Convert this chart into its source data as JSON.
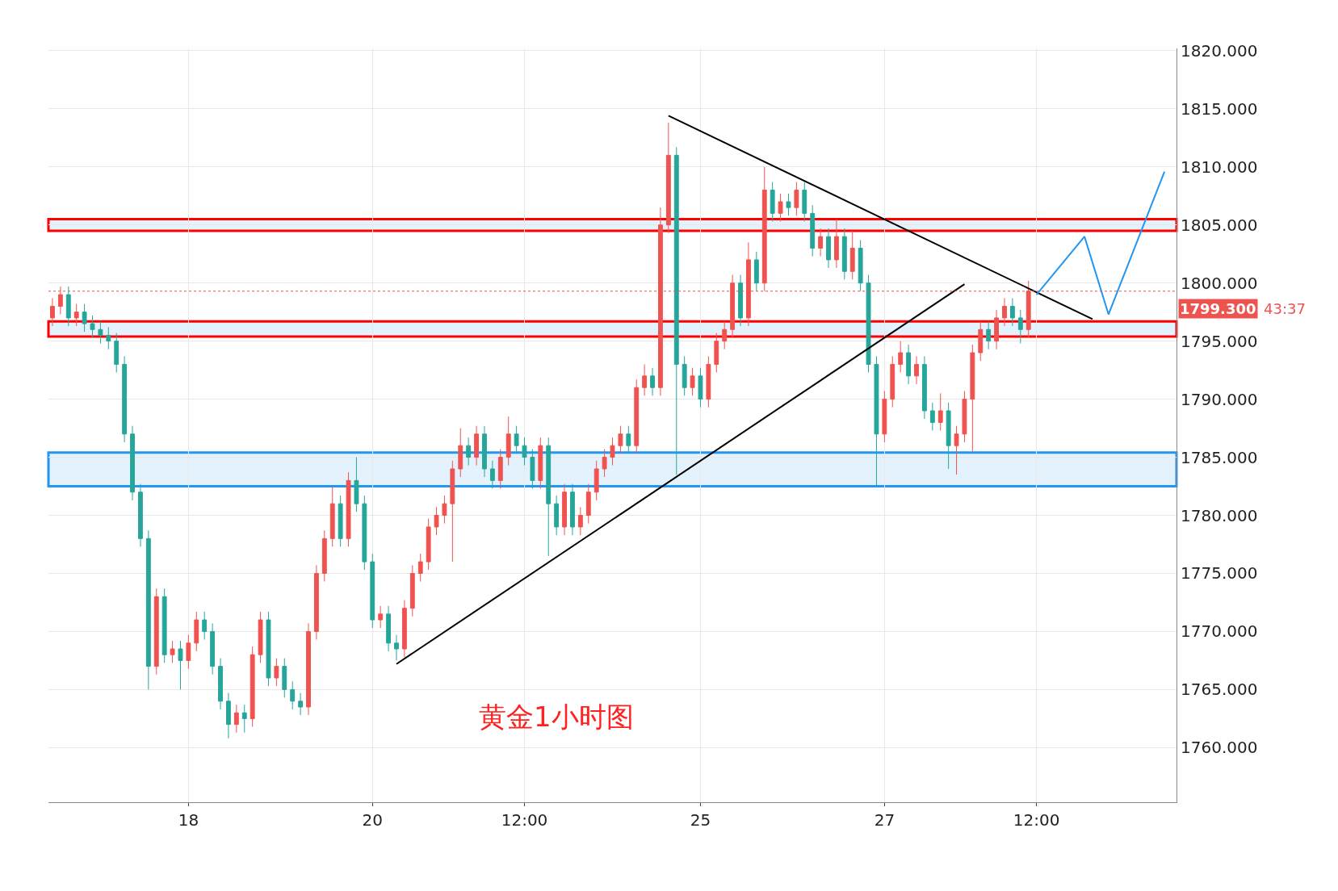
{
  "chart_data": {
    "type": "candlestick",
    "categories": [
      null,
      null,
      null,
      null,
      null,
      null,
      null,
      null,
      null,
      null,
      null,
      null,
      null,
      null,
      null,
      null,
      null,
      "18",
      null,
      null,
      null,
      null,
      null,
      null,
      null,
      null,
      null,
      null,
      null,
      null,
      null,
      null,
      null,
      null,
      null,
      null,
      null,
      null,
      null,
      null,
      "20",
      null,
      null,
      null,
      null,
      null,
      null,
      null,
      null,
      null,
      null,
      null,
      null,
      null,
      null,
      null,
      null,
      null,
      null,
      "12:00",
      null,
      null,
      null,
      null,
      null,
      null,
      null,
      null,
      null,
      null,
      null,
      null,
      null,
      null,
      null,
      null,
      null,
      null,
      null,
      null,
      null,
      "25",
      null,
      null,
      null,
      null,
      null,
      null,
      null,
      null,
      null,
      null,
      null,
      null,
      null,
      null,
      null,
      null,
      null,
      null,
      null,
      null,
      null,
      null,
      "27",
      null,
      null,
      null,
      null,
      null,
      null,
      null,
      null,
      null,
      null,
      null,
      null,
      null,
      null,
      null,
      null,
      null,
      null,
      "12:00",
      null,
      null,
      null,
      null,
      null,
      null,
      null,
      null,
      null,
      null,
      null,
      null,
      null,
      null,
      null,
      null,
      null
    ],
    "series": [
      {
        "colors": [
          "#ef5350",
          "#ef5350",
          "#26a69a",
          "#ef5350",
          "#26a69a",
          "#26a69a",
          "#26a69a",
          "#26a69a",
          "#26a69a",
          "#26a69a",
          "#26a69a",
          "#26a69a",
          "#26a69a",
          "#ef5350",
          "#26a69a",
          "#ef5350",
          "#26a69a",
          "#ef5350",
          "#ef5350",
          "#26a69a",
          "#26a69a",
          "#26a69a",
          "#26a69a",
          "#ef5350",
          "#26a69a",
          "#ef5350",
          "#ef5350",
          "#26a69a",
          "#ef5350",
          "#26a69a",
          "#26a69a",
          "#26a69a",
          "#ef5350",
          "#ef5350",
          "#ef5350",
          "#ef5350",
          "#26a69a",
          "#ef5350",
          "#26a69a",
          "#26a69a",
          "#26a69a",
          "#ef5350",
          "#26a69a",
          "#26a69a",
          "#ef5350",
          "#ef5350",
          "#ef5350",
          "#ef5350",
          "#ef5350",
          "#ef5350",
          "#ef5350",
          "#ef5350",
          "#26a69a",
          "#ef5350",
          "#26a69a",
          "#26a69a",
          "#ef5350",
          "#ef5350",
          "#26a69a",
          "#26a69a",
          "#26a69a",
          "#ef5350",
          "#26a69a",
          "#26a69a",
          "#ef5350",
          "#26a69a",
          "#ef5350",
          "#ef5350",
          "#ef5350",
          "#ef5350",
          "#ef5350",
          "#ef5350",
          "#26a69a",
          "#ef5350",
          "#ef5350",
          "#26a69a",
          "#ef5350",
          "#ef5350",
          "#26a69a",
          "#26a69a",
          "#ef5350",
          "#26a69a",
          "#ef5350",
          "#ef5350",
          "#ef5350",
          "#ef5350",
          "#26a69a",
          "#ef5350",
          "#26a69a",
          "#ef5350",
          "#26a69a",
          "#ef5350",
          "#26a69a",
          "#ef5350",
          "#26a69a",
          "#26a69a",
          "#ef5350",
          "#26a69a",
          "#ef5350",
          "#26a69a",
          "#ef5350",
          "#26a69a",
          "#26a69a",
          "#26a69a",
          "#ef5350",
          "#ef5350",
          "#ef5350",
          "#26a69a",
          "#ef5350",
          "#26a69a",
          "#26a69a",
          "#ef5350",
          "#26a69a",
          "#ef5350",
          "#ef5350",
          "#ef5350",
          "#ef5350",
          "#26a69a",
          "#ef5350",
          "#ef5350",
          "#26a69a",
          "#26a69a",
          "#ef5350",
          null,
          null,
          null,
          null,
          null,
          null,
          null,
          null,
          null,
          null,
          null,
          null,
          null,
          null,
          null,
          null,
          null,
          null
        ],
        "ohlc": [
          [
            1797,
            1798.7,
            1796.3,
            1798
          ],
          [
            1798,
            1799.7,
            1797.3,
            1799
          ],
          [
            1799,
            1799.7,
            1796.3,
            1797
          ],
          [
            1797,
            1798.2,
            1796.3,
            1797.5
          ],
          [
            1797.5,
            1798.2,
            1795.8,
            1796.5
          ],
          [
            1796.5,
            1797.2,
            1795.3,
            1796
          ],
          [
            1796,
            1796.7,
            1794.8,
            1795.5
          ],
          [
            1795.5,
            1796.2,
            1794.3,
            1795
          ],
          [
            1795,
            1795.7,
            1792.3,
            1793
          ],
          [
            1793,
            1793.7,
            1786.3,
            1787
          ],
          [
            1787,
            1787.7,
            1781.3,
            1782
          ],
          [
            1782,
            1782.7,
            1777.3,
            1778
          ],
          [
            1778,
            1778.7,
            1765,
            1767
          ],
          [
            1767,
            1773.7,
            1766.3,
            1773
          ],
          [
            1773,
            1773.7,
            1767.3,
            1768
          ],
          [
            1768,
            1769.2,
            1767.3,
            1768.5
          ],
          [
            1768.5,
            1769.2,
            1765,
            1767.5
          ],
          [
            1767.5,
            1769.7,
            1766.8,
            1769
          ],
          [
            1769,
            1771.7,
            1768.3,
            1771
          ],
          [
            1771,
            1771.7,
            1769.3,
            1770
          ],
          [
            1770,
            1770.7,
            1766.3,
            1767
          ],
          [
            1767,
            1767.7,
            1763.3,
            1764
          ],
          [
            1764,
            1764.7,
            1760.8,
            1762
          ],
          [
            1762,
            1763.7,
            1761.3,
            1763
          ],
          [
            1763,
            1763.7,
            1761.3,
            1762.5
          ],
          [
            1762.5,
            1768.7,
            1761.8,
            1768
          ],
          [
            1768,
            1771.7,
            1767.3,
            1771
          ],
          [
            1771,
            1771.7,
            1765.3,
            1766
          ],
          [
            1766,
            1767.7,
            1765.3,
            1767
          ],
          [
            1767,
            1767.7,
            1764.3,
            1765
          ],
          [
            1765,
            1765.7,
            1763.3,
            1764
          ],
          [
            1764,
            1764.7,
            1762.8,
            1763.5
          ],
          [
            1763.5,
            1770.7,
            1762.8,
            1770
          ],
          [
            1770,
            1775.7,
            1769.3,
            1775
          ],
          [
            1775,
            1778.7,
            1774.3,
            1778
          ],
          [
            1778,
            1782.5,
            1777.3,
            1781
          ],
          [
            1781,
            1781.7,
            1777.3,
            1778
          ],
          [
            1778,
            1783.7,
            1777.3,
            1783
          ],
          [
            1783,
            1785,
            1780.3,
            1781
          ],
          [
            1781,
            1781.7,
            1775.3,
            1776
          ],
          [
            1776,
            1776.7,
            1770.3,
            1771
          ],
          [
            1771,
            1772.2,
            1770.3,
            1771.5
          ],
          [
            1771.5,
            1772.2,
            1768.3,
            1769
          ],
          [
            1769,
            1769.7,
            1767.5,
            1768.5
          ],
          [
            1768.5,
            1772.7,
            1767.8,
            1772
          ],
          [
            1772,
            1775.7,
            1771.3,
            1775
          ],
          [
            1775,
            1776.7,
            1774.3,
            1776
          ],
          [
            1776,
            1779.7,
            1775.3,
            1779
          ],
          [
            1779,
            1780.7,
            1778.3,
            1780
          ],
          [
            1780,
            1781.7,
            1779.3,
            1781
          ],
          [
            1781,
            1784.7,
            1776,
            1784
          ],
          [
            1784,
            1787.5,
            1783.3,
            1786
          ],
          [
            1786,
            1786.7,
            1784.3,
            1785
          ],
          [
            1785,
            1787.7,
            1784.3,
            1787
          ],
          [
            1787,
            1787.7,
            1783.3,
            1784
          ],
          [
            1784,
            1784.7,
            1782.3,
            1783
          ],
          [
            1783,
            1785.7,
            1782.3,
            1785
          ],
          [
            1785,
            1788.5,
            1784.3,
            1787
          ],
          [
            1787,
            1787.7,
            1785.3,
            1786
          ],
          [
            1786,
            1786.7,
            1784.3,
            1785
          ],
          [
            1785,
            1785.7,
            1782.3,
            1783
          ],
          [
            1783,
            1786.7,
            1782.3,
            1786
          ],
          [
            1786,
            1786.7,
            1776.5,
            1781
          ],
          [
            1781,
            1781.7,
            1778.3,
            1779
          ],
          [
            1779,
            1782.7,
            1778.3,
            1782
          ],
          [
            1782,
            1782.7,
            1778.3,
            1779
          ],
          [
            1779,
            1780.7,
            1778.3,
            1780
          ],
          [
            1780,
            1782.7,
            1779.3,
            1782
          ],
          [
            1782,
            1784.7,
            1781.3,
            1784
          ],
          [
            1784,
            1785.7,
            1783.3,
            1785
          ],
          [
            1785,
            1786.7,
            1784.3,
            1786
          ],
          [
            1786,
            1787.7,
            1785.3,
            1787
          ],
          [
            1787,
            1787.7,
            1785.3,
            1786
          ],
          [
            1786,
            1791.7,
            1785.3,
            1791
          ],
          [
            1791,
            1793,
            1790.3,
            1792
          ],
          [
            1792,
            1792.7,
            1790.3,
            1791
          ],
          [
            1791,
            1806.5,
            1790.3,
            1805
          ],
          [
            1805,
            1813.8,
            1804.3,
            1811
          ],
          [
            1811,
            1811.7,
            1783.5,
            1793
          ],
          [
            1793,
            1793.7,
            1790.3,
            1791
          ],
          [
            1791,
            1792.7,
            1790.3,
            1792
          ],
          [
            1792,
            1792.7,
            1789.3,
            1790
          ],
          [
            1790,
            1793.7,
            1789.3,
            1793
          ],
          [
            1793,
            1795.7,
            1792.3,
            1795
          ],
          [
            1795,
            1796.7,
            1794.3,
            1796
          ],
          [
            1796,
            1800.7,
            1795.3,
            1800
          ],
          [
            1800,
            1800.7,
            1796.3,
            1797
          ],
          [
            1797,
            1803.5,
            1796.3,
            1802
          ],
          [
            1802,
            1802.7,
            1799.3,
            1800
          ],
          [
            1800,
            1810,
            1799.3,
            1808
          ],
          [
            1808,
            1808.7,
            1805.3,
            1806
          ],
          [
            1806,
            1807.7,
            1805.3,
            1807
          ],
          [
            1807,
            1807.7,
            1805.8,
            1806.5
          ],
          [
            1806.5,
            1808.7,
            1805.8,
            1808
          ],
          [
            1808,
            1808.7,
            1805.3,
            1806
          ],
          [
            1806,
            1806.7,
            1802.3,
            1803
          ],
          [
            1803,
            1804.7,
            1802.3,
            1804
          ],
          [
            1804,
            1804.7,
            1801.3,
            1802
          ],
          [
            1802,
            1805.5,
            1801.3,
            1804
          ],
          [
            1804,
            1804.7,
            1800.3,
            1801
          ],
          [
            1801,
            1804.5,
            1800.3,
            1803
          ],
          [
            1803,
            1803.7,
            1799.3,
            1800
          ],
          [
            1800,
            1800.7,
            1792.3,
            1793
          ],
          [
            1793,
            1793.7,
            1782.5,
            1787
          ],
          [
            1787,
            1790.7,
            1786.3,
            1790
          ],
          [
            1790,
            1793.7,
            1789.3,
            1793
          ],
          [
            1793,
            1795,
            1792.3,
            1794
          ],
          [
            1794,
            1794.7,
            1791.3,
            1792
          ],
          [
            1792,
            1793.7,
            1791.3,
            1793
          ],
          [
            1793,
            1793.7,
            1788.3,
            1789
          ],
          [
            1789,
            1789.7,
            1787.3,
            1788
          ],
          [
            1788,
            1790.5,
            1787.3,
            1789
          ],
          [
            1789,
            1789.7,
            1784,
            1786
          ],
          [
            1786,
            1787.7,
            1783.5,
            1787
          ],
          [
            1787,
            1790.7,
            1786.3,
            1790
          ],
          [
            1790,
            1794.7,
            1785.5,
            1794
          ],
          [
            1794,
            1796.7,
            1793.3,
            1796
          ],
          [
            1796,
            1796.7,
            1794.3,
            1795
          ],
          [
            1795,
            1797.7,
            1794.3,
            1797
          ],
          [
            1797,
            1798.7,
            1796.3,
            1798
          ],
          [
            1798,
            1798.7,
            1796.3,
            1797
          ],
          [
            1797,
            1797.7,
            1794.8,
            1796
          ],
          [
            1796,
            1800.2,
            1795.3,
            1799.3
          ],
          null,
          null,
          null,
          null,
          null,
          null,
          null,
          null,
          null,
          null,
          null,
          null,
          null,
          null,
          null,
          null,
          null,
          null
        ]
      },
      {
        "type": "line",
        "color": "#000000",
        "values": [
          null,
          null,
          null,
          null,
          null,
          null,
          null,
          null,
          null,
          null,
          null,
          null,
          null,
          null,
          null,
          null,
          null,
          null,
          null,
          null,
          null,
          null,
          null,
          null,
          null,
          null,
          null,
          null,
          null,
          null,
          null,
          null,
          null,
          null,
          null,
          null,
          null,
          null,
          null,
          null,
          null,
          null,
          null,
          1767.2,
          null,
          null,
          null,
          null,
          null,
          null,
          null,
          null,
          null,
          null,
          null,
          null,
          null,
          null,
          null,
          null,
          null,
          null,
          null,
          null,
          null,
          null,
          null,
          null,
          null,
          null,
          null,
          null,
          null,
          null,
          null,
          null,
          null,
          null,
          null,
          null,
          null,
          null,
          null,
          null,
          null,
          null,
          null,
          null,
          null,
          null,
          null,
          null,
          null,
          null,
          null,
          null,
          null,
          null,
          null,
          null,
          null,
          null,
          null,
          null,
          null,
          null,
          null,
          null,
          null,
          null,
          null,
          null,
          null,
          null,
          1799.9,
          null,
          null,
          null,
          null,
          null,
          null,
          null,
          null,
          null,
          null,
          null,
          null,
          null,
          null,
          null,
          null,
          null,
          null,
          null,
          null,
          null,
          null,
          null,
          null,
          null,
          null
        ]
      },
      {
        "type": "line",
        "color": "#000000",
        "values": [
          null,
          null,
          null,
          null,
          null,
          null,
          null,
          null,
          null,
          null,
          null,
          null,
          null,
          null,
          null,
          null,
          null,
          null,
          null,
          null,
          null,
          null,
          null,
          null,
          null,
          null,
          null,
          null,
          null,
          null,
          null,
          null,
          null,
          null,
          null,
          null,
          null,
          null,
          null,
          null,
          null,
          null,
          null,
          null,
          null,
          null,
          null,
          null,
          null,
          null,
          null,
          null,
          null,
          null,
          null,
          null,
          null,
          null,
          null,
          null,
          null,
          null,
          null,
          null,
          null,
          null,
          null,
          null,
          null,
          null,
          null,
          null,
          null,
          null,
          null,
          null,
          null,
          1814.4,
          null,
          null,
          null,
          null,
          null,
          null,
          null,
          null,
          null,
          null,
          null,
          null,
          null,
          null,
          null,
          null,
          null,
          null,
          null,
          null,
          null,
          null,
          null,
          null,
          null,
          null,
          null,
          null,
          null,
          null,
          null,
          null,
          null,
          null,
          null,
          null,
          null,
          null,
          null,
          null,
          null,
          null,
          null,
          null,
          null,
          null,
          null,
          null,
          null,
          null,
          null,
          null,
          1796.9,
          null,
          null,
          null,
          null,
          null,
          null,
          null,
          null,
          null,
          null
        ]
      },
      {
        "type": "line",
        "color": "#2196f3",
        "values": [
          null,
          null,
          null,
          null,
          null,
          null,
          null,
          null,
          null,
          null,
          null,
          null,
          null,
          null,
          null,
          null,
          null,
          null,
          null,
          null,
          null,
          null,
          null,
          null,
          null,
          null,
          null,
          null,
          null,
          null,
          null,
          null,
          null,
          null,
          null,
          null,
          null,
          null,
          null,
          null,
          null,
          null,
          null,
          null,
          null,
          null,
          null,
          null,
          null,
          null,
          null,
          null,
          null,
          null,
          null,
          null,
          null,
          null,
          null,
          null,
          null,
          null,
          null,
          null,
          null,
          null,
          null,
          null,
          null,
          null,
          null,
          null,
          null,
          null,
          null,
          null,
          null,
          null,
          null,
          null,
          null,
          null,
          null,
          null,
          null,
          null,
          null,
          null,
          null,
          null,
          null,
          null,
          null,
          null,
          null,
          null,
          null,
          null,
          null,
          null,
          null,
          null,
          null,
          null,
          null,
          null,
          null,
          null,
          null,
          null,
          null,
          null,
          null,
          null,
          null,
          null,
          null,
          null,
          null,
          null,
          null,
          null,
          null,
          1799.0,
          null,
          null,
          null,
          null,
          null,
          1804.0,
          null,
          null,
          1797.3,
          null,
          null,
          null,
          null,
          null,
          null,
          1809.6,
          null
        ]
      }
    ],
    "ylim": [
      1755.3,
      1820.2
    ],
    "yticks": [
      {
        "value": 1760,
        "label": "1760.000"
      },
      {
        "value": 1765,
        "label": "1765.000"
      },
      {
        "value": 1770,
        "label": "1770.000"
      },
      {
        "value": 1775,
        "label": "1775.000"
      },
      {
        "value": 1780,
        "label": "1780.000"
      },
      {
        "value": 1785,
        "label": "1785.000"
      },
      {
        "value": 1790,
        "label": "1790.000"
      },
      {
        "value": 1795,
        "label": "1795.000"
      },
      {
        "value": 1800,
        "label": "1800.000"
      },
      {
        "value": 1805,
        "label": "1805.000"
      },
      {
        "value": 1810,
        "label": "1810.000"
      },
      {
        "value": 1815,
        "label": "1815.000"
      },
      {
        "value": 1820,
        "label": "1820.000"
      }
    ],
    "ref_lines": [
      {
        "axis": "y",
        "value": 1799.3,
        "label": "1799.300",
        "color": "#ef5350",
        "line_style": "dotted"
      }
    ],
    "bands": [
      {
        "axis": "y",
        "from": 1782.5,
        "to": 1785.4,
        "color": "#2196f3"
      },
      {
        "axis": "y",
        "from": 1804.5,
        "to": 1805.5,
        "color": "#ff0000"
      },
      {
        "axis": "y",
        "from": 1795.4,
        "to": 1796.7,
        "color": "#ff0000"
      }
    ],
    "annotations": [
      "黄金1小时图",
      "43:37"
    ],
    "grid": true,
    "line_style": "solid",
    "marker": "none"
  }
}
